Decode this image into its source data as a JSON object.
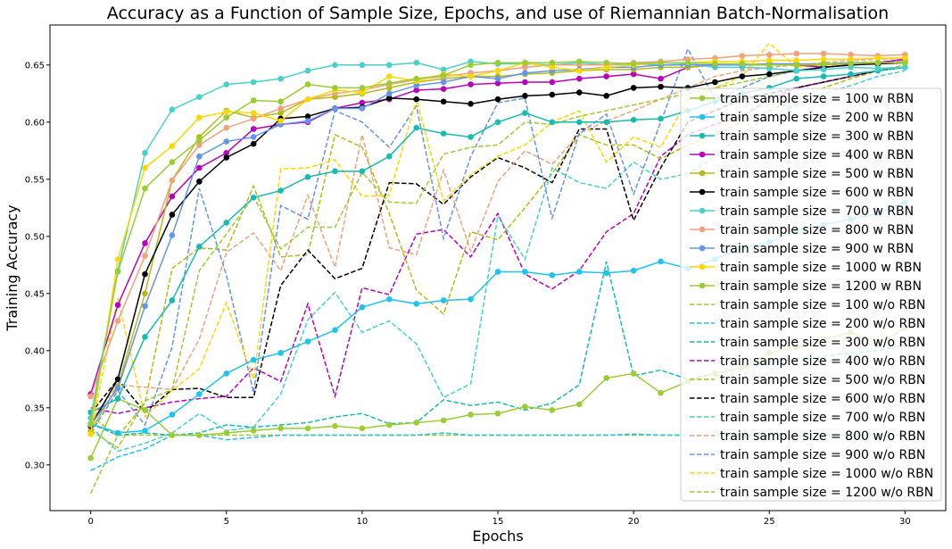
{
  "chart_data": {
    "type": "line",
    "title": "Accuracy as a Function of Sample Size, Epochs, and use of Riemannian Batch-Normalisation",
    "xlabel": "Epochs",
    "ylabel": "Training Accuracy",
    "xlim": [
      -1.5,
      31.5
    ],
    "ylim": [
      0.26,
      0.685
    ],
    "xticks": [
      0,
      5,
      10,
      15,
      20,
      25,
      30
    ],
    "xtick_labels": [
      "0",
      "5",
      "10",
      "15",
      "20",
      "25",
      "30"
    ],
    "yticks": [
      0.3,
      0.35,
      0.4,
      0.45,
      0.5,
      0.55,
      0.6,
      0.65
    ],
    "ytick_labels": [
      "0.30",
      "0.35",
      "0.40",
      "0.45",
      "0.50",
      "0.55",
      "0.60",
      "0.65"
    ],
    "grid": false,
    "legend_position": "right",
    "series": [
      {
        "name": "train sample size = 100 w RBN",
        "color": "#9acd32",
        "style": "solid",
        "values": [
          0.306,
          0.358,
          0.348,
          0.326,
          0.326,
          0.328,
          0.33,
          0.332,
          0.332,
          0.334,
          0.332,
          0.335,
          0.337,
          0.339,
          0.344,
          0.345,
          0.351,
          0.348,
          0.353,
          0.376,
          0.38,
          0.363,
          0.373,
          0.38,
          0.385,
          0.398,
          0.403,
          0.41,
          0.416,
          0.405,
          0.42
        ]
      },
      {
        "name": "train sample size = 200 w RBN",
        "color": "#1ec3f0",
        "style": "solid",
        "values": [
          0.336,
          0.328,
          0.33,
          0.344,
          0.362,
          0.38,
          0.392,
          0.398,
          0.408,
          0.418,
          0.438,
          0.445,
          0.441,
          0.444,
          0.445,
          0.469,
          0.469,
          0.466,
          0.469,
          0.468,
          0.47,
          0.478,
          0.472,
          0.48,
          0.49,
          0.495,
          0.505,
          0.51,
          0.515,
          0.52,
          0.53
        ]
      },
      {
        "name": "train sample size = 300 w RBN",
        "color": "#17bcb0",
        "style": "solid",
        "values": [
          0.346,
          0.358,
          0.412,
          0.444,
          0.491,
          0.512,
          0.534,
          0.54,
          0.552,
          0.557,
          0.557,
          0.57,
          0.595,
          0.59,
          0.587,
          0.6,
          0.608,
          0.6,
          0.6,
          0.6,
          0.602,
          0.603,
          0.61,
          0.618,
          0.625,
          0.63,
          0.638,
          0.64,
          0.642,
          0.645,
          0.648
        ]
      },
      {
        "name": "train sample size = 400 w RBN",
        "color": "#bb00bb",
        "style": "solid",
        "values": [
          0.362,
          0.44,
          0.494,
          0.535,
          0.56,
          0.573,
          0.594,
          0.598,
          0.6,
          0.612,
          0.617,
          0.62,
          0.628,
          0.629,
          0.633,
          0.634,
          0.635,
          0.635,
          0.638,
          0.64,
          0.642,
          0.638,
          0.648,
          0.65,
          0.65,
          0.651,
          0.65,
          0.648,
          0.65,
          0.652,
          0.655
        ]
      },
      {
        "name": "train sample size = 500 w RBN",
        "color": "#b3bc13",
        "style": "solid",
        "values": [
          0.33,
          0.369,
          0.45,
          0.549,
          0.587,
          0.61,
          0.604,
          0.608,
          0.62,
          0.622,
          0.625,
          0.63,
          0.635,
          0.638,
          0.64,
          0.64,
          0.642,
          0.643,
          0.645,
          0.646,
          0.646,
          0.648,
          0.648,
          0.65,
          0.65,
          0.65,
          0.65,
          0.65,
          0.651,
          0.651,
          0.652
        ]
      },
      {
        "name": "train sample size = 600 w RBN",
        "color": "#000000",
        "style": "solid",
        "values": [
          0.334,
          0.375,
          0.467,
          0.519,
          0.548,
          0.569,
          0.581,
          0.603,
          0.605,
          0.612,
          0.613,
          0.621,
          0.62,
          0.618,
          0.616,
          0.62,
          0.623,
          0.624,
          0.626,
          0.623,
          0.63,
          0.631,
          0.63,
          0.635,
          0.64,
          0.642,
          0.645,
          0.648,
          0.65,
          0.651,
          0.652
        ]
      },
      {
        "name": "train sample size = 700 w RBN",
        "color": "#48d1cc",
        "style": "solid",
        "values": [
          0.341,
          0.47,
          0.573,
          0.611,
          0.622,
          0.633,
          0.635,
          0.638,
          0.645,
          0.65,
          0.65,
          0.65,
          0.652,
          0.646,
          0.653,
          0.651,
          0.651,
          0.65,
          0.652,
          0.65,
          0.651,
          0.65,
          0.651,
          0.648,
          0.648,
          0.647,
          0.645,
          0.646,
          0.648,
          0.647,
          0.648
        ]
      },
      {
        "name": "train sample size = 800 w RBN",
        "color": "#f4a07a",
        "style": "solid",
        "values": [
          0.36,
          0.426,
          0.483,
          0.549,
          0.58,
          0.595,
          0.603,
          0.612,
          0.62,
          0.625,
          0.628,
          0.633,
          0.637,
          0.64,
          0.643,
          0.645,
          0.648,
          0.65,
          0.65,
          0.65,
          0.652,
          0.653,
          0.655,
          0.656,
          0.658,
          0.659,
          0.66,
          0.66,
          0.659,
          0.658,
          0.659
        ]
      },
      {
        "name": "train sample size = 900 w RBN",
        "color": "#6495ed",
        "style": "solid",
        "values": [
          0.335,
          0.367,
          0.439,
          0.501,
          0.57,
          0.583,
          0.587,
          0.598,
          0.601,
          0.612,
          0.612,
          0.625,
          0.632,
          0.635,
          0.64,
          0.638,
          0.643,
          0.645,
          0.646,
          0.648,
          0.648,
          0.65,
          0.65,
          0.65,
          0.65,
          0.651,
          0.651,
          0.651,
          0.652,
          0.652,
          0.652
        ]
      },
      {
        "name": "train sample size = 1000 w RBN",
        "color": "#ffd700",
        "style": "solid",
        "values": [
          0.327,
          0.48,
          0.56,
          0.579,
          0.604,
          0.609,
          0.608,
          0.601,
          0.62,
          0.628,
          0.626,
          0.64,
          0.636,
          0.642,
          0.64,
          0.645,
          0.652,
          0.648,
          0.645,
          0.648,
          0.65,
          0.652,
          0.652,
          0.653,
          0.653,
          0.654,
          0.654,
          0.655,
          0.655,
          0.656,
          0.656
        ]
      },
      {
        "name": "train sample size = 1200 w RBN",
        "color": "#9acd32",
        "style": "solid",
        "values": [
          0.336,
          0.469,
          0.542,
          0.565,
          0.584,
          0.604,
          0.619,
          0.618,
          0.633,
          0.63,
          0.63,
          0.634,
          0.638,
          0.641,
          0.65,
          0.652,
          0.652,
          0.652,
          0.653,
          0.652,
          0.651,
          0.652,
          0.652,
          0.651,
          0.651,
          0.65,
          0.65,
          0.651,
          0.651,
          0.652,
          0.652
        ]
      },
      {
        "name": "train sample size = 100 w/o RBN",
        "color": "#9acd32",
        "style": "dashed",
        "values": [
          0.275,
          0.326,
          0.326,
          0.326,
          0.326,
          0.326,
          0.326,
          0.326,
          0.326,
          0.326,
          0.326,
          0.326,
          0.326,
          0.326,
          0.326,
          0.326,
          0.326,
          0.326,
          0.326,
          0.326,
          0.326,
          0.326,
          0.326,
          0.326,
          0.326,
          0.326,
          0.326,
          0.326,
          0.326,
          0.326,
          0.326
        ]
      },
      {
        "name": "train sample size = 200 w/o RBN",
        "color": "#1ec3f0",
        "style": "dashed",
        "values": [
          0.295,
          0.307,
          0.314,
          0.326,
          0.326,
          0.322,
          0.324,
          0.326,
          0.326,
          0.326,
          0.326,
          0.326,
          0.326,
          0.328,
          0.326,
          0.326,
          0.326,
          0.326,
          0.326,
          0.326,
          0.327,
          0.326,
          0.326,
          0.326,
          0.326,
          0.326,
          0.326,
          0.326,
          0.326,
          0.326,
          0.326
        ]
      },
      {
        "name": "train sample size = 300 w/o RBN",
        "color": "#17bcb0",
        "style": "dashed",
        "values": [
          0.336,
          0.326,
          0.328,
          0.326,
          0.328,
          0.335,
          0.333,
          0.335,
          0.337,
          0.342,
          0.345,
          0.336,
          0.337,
          0.357,
          0.352,
          0.355,
          0.348,
          0.354,
          0.37,
          0.478,
          0.378,
          0.383,
          0.375,
          0.38,
          0.385,
          0.39,
          0.393,
          0.395,
          0.398,
          0.4,
          0.405
        ]
      },
      {
        "name": "train sample size = 400 w/o RBN",
        "color": "#bb00bb",
        "style": "dashed",
        "values": [
          0.35,
          0.345,
          0.35,
          0.355,
          0.358,
          0.36,
          0.385,
          0.373,
          0.441,
          0.36,
          0.455,
          0.449,
          0.502,
          0.506,
          0.482,
          0.52,
          0.467,
          0.454,
          0.47,
          0.504,
          0.52,
          0.57,
          0.589,
          0.598,
          0.605,
          0.62,
          0.63,
          0.635,
          0.64,
          0.645,
          0.648
        ]
      },
      {
        "name": "train sample size = 500 w/o RBN",
        "color": "#b3bc13",
        "style": "dashed",
        "values": [
          0.343,
          0.325,
          0.354,
          0.472,
          0.49,
          0.488,
          0.544,
          0.482,
          0.484,
          0.589,
          0.578,
          0.52,
          0.453,
          0.432,
          0.504,
          0.497,
          0.525,
          0.555,
          0.589,
          0.58,
          0.58,
          0.568,
          0.58,
          0.59,
          0.6,
          0.61,
          0.62,
          0.63,
          0.638,
          0.645,
          0.65
        ]
      },
      {
        "name": "train sample size = 600 w/o RBN",
        "color": "#000000",
        "style": "dashed",
        "values": [
          0.345,
          0.375,
          0.346,
          0.366,
          0.367,
          0.359,
          0.359,
          0.457,
          0.488,
          0.463,
          0.472,
          0.547,
          0.546,
          0.528,
          0.552,
          0.569,
          0.56,
          0.547,
          0.594,
          0.594,
          0.514,
          0.56,
          0.6,
          0.61,
          0.62,
          0.625,
          0.63,
          0.635,
          0.64,
          0.645,
          0.648
        ]
      },
      {
        "name": "train sample size = 700 w/o RBN",
        "color": "#48d1cc",
        "style": "dashed",
        "values": [
          0.333,
          0.312,
          0.319,
          0.328,
          0.345,
          0.33,
          0.333,
          0.362,
          0.427,
          0.451,
          0.416,
          0.426,
          0.406,
          0.359,
          0.371,
          0.518,
          0.48,
          0.56,
          0.547,
          0.542,
          0.565,
          0.55,
          0.555,
          0.57,
          0.59,
          0.605,
          0.615,
          0.625,
          0.632,
          0.64,
          0.645
        ]
      },
      {
        "name": "train sample size = 800 w/o RBN",
        "color": "#f4a07a",
        "style": "dashed",
        "values": [
          0.338,
          0.37,
          0.368,
          0.366,
          0.41,
          0.486,
          0.503,
          0.47,
          0.536,
          0.473,
          0.589,
          0.49,
          0.484,
          0.558,
          0.487,
          0.548,
          0.575,
          0.563,
          0.59,
          0.601,
          0.61,
          0.62,
          0.63,
          0.64,
          0.645,
          0.648,
          0.65,
          0.652,
          0.654,
          0.655,
          0.656
        ]
      },
      {
        "name": "train sample size = 900 w/o RBN",
        "color": "#6495ed",
        "style": "dashed",
        "values": [
          0.328,
          0.365,
          0.335,
          0.403,
          0.542,
          0.466,
          0.363,
          0.527,
          0.515,
          0.61,
          0.6,
          0.578,
          0.614,
          0.498,
          0.57,
          0.617,
          0.621,
          0.516,
          0.59,
          0.607,
          0.537,
          0.6,
          0.664,
          0.62,
          0.63,
          0.64,
          0.645,
          0.648,
          0.65,
          0.652,
          0.653
        ]
      },
      {
        "name": "train sample size = 1000 w/o RBN",
        "color": "#ffd700",
        "style": "dashed",
        "values": [
          0.328,
          0.446,
          0.342,
          0.365,
          0.384,
          0.442,
          0.375,
          0.559,
          0.56,
          0.567,
          0.535,
          0.536,
          0.62,
          0.531,
          0.554,
          0.57,
          0.58,
          0.6,
          0.61,
          0.565,
          0.587,
          0.578,
          0.62,
          0.63,
          0.64,
          0.669,
          0.648,
          0.65,
          0.652,
          0.653,
          0.654
        ]
      },
      {
        "name": "train sample size = 1200 w/o RBN",
        "color": "#9acd32",
        "style": "dashed",
        "values": [
          0.33,
          0.315,
          0.356,
          0.366,
          0.47,
          0.502,
          0.535,
          0.489,
          0.508,
          0.508,
          0.556,
          0.53,
          0.529,
          0.572,
          0.578,
          0.58,
          0.6,
          0.598,
          0.605,
          0.61,
          0.615,
          0.62,
          0.625,
          0.63,
          0.635,
          0.64,
          0.645,
          0.648,
          0.65,
          0.652,
          0.655
        ]
      }
    ]
  }
}
